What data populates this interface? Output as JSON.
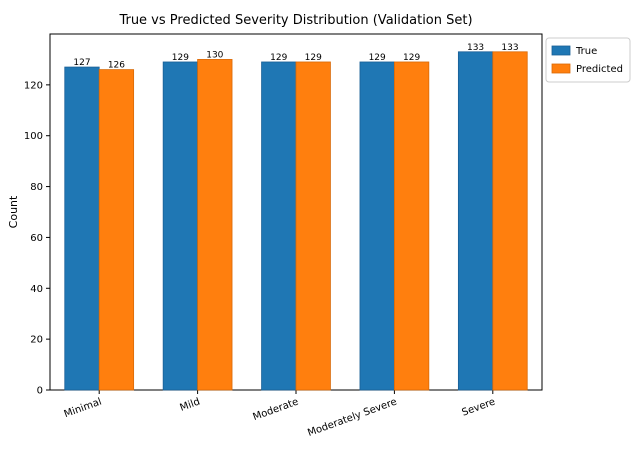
{
  "chart_data": {
    "type": "bar",
    "title": "True vs Predicted Severity Distribution (Validation Set)",
    "xlabel": "",
    "ylabel": "Count",
    "categories": [
      "Minimal",
      "Mild",
      "Moderate",
      "Moderately Severe",
      "Severe"
    ],
    "series": [
      {
        "name": "True",
        "values": [
          127,
          129,
          129,
          129,
          133
        ],
        "color": "#1f77b4"
      },
      {
        "name": "Predicted",
        "values": [
          126,
          130,
          129,
          129,
          133
        ],
        "color": "#ff7f0e"
      }
    ],
    "ylim": [
      0,
      140
    ],
    "yticks": [
      0,
      20,
      40,
      60,
      80,
      100,
      120
    ],
    "grid": false,
    "legend_position": "outside-top-right",
    "xtick_rotation": "rotated"
  }
}
